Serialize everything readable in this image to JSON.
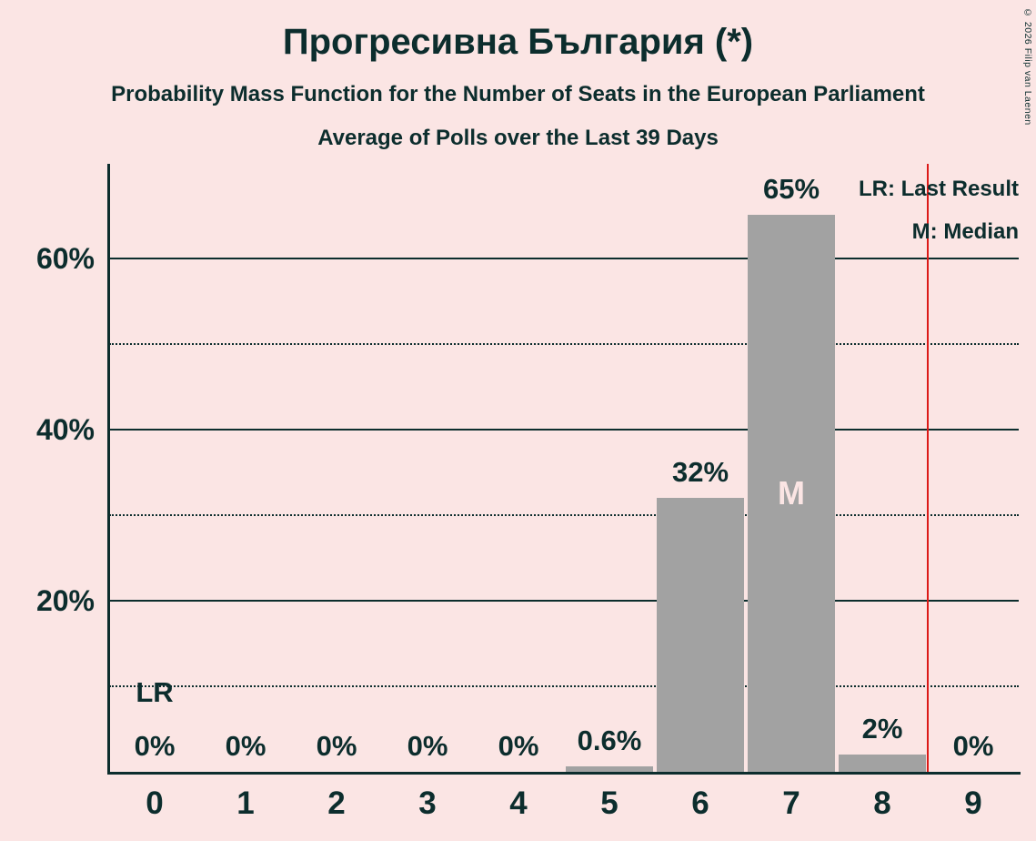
{
  "copyright": "© 2026 Filip van Laenen",
  "legend": {
    "lr": "LR: Last Result",
    "m": "M: Median"
  },
  "chart_data": {
    "type": "bar",
    "title": "Прогресивна България (*)",
    "subtitle": "Probability Mass Function for the Number of Seats in the European Parliament",
    "subsubtitle": "Average of Polls over the Last 39 Days",
    "categories": [
      "0",
      "1",
      "2",
      "3",
      "4",
      "5",
      "6",
      "7",
      "8",
      "9"
    ],
    "values": [
      0,
      0,
      0,
      0,
      0,
      0.6,
      32,
      65,
      2,
      0
    ],
    "value_labels": [
      "0%",
      "0%",
      "0%",
      "0%",
      "0%",
      "0.6%",
      "32%",
      "65%",
      "2%",
      "0%"
    ],
    "xlabel": "",
    "ylabel": "",
    "ylim": [
      0,
      71
    ],
    "yticks": [
      {
        "value": 20,
        "label": "20%"
      },
      {
        "value": 40,
        "label": "40%"
      },
      {
        "value": 60,
        "label": "60%"
      }
    ],
    "gridlines": {
      "solid": [
        20,
        40,
        60
      ],
      "dotted": [
        10,
        30,
        50
      ]
    },
    "median": {
      "category": "7",
      "label": "M"
    },
    "last_result": {
      "category": "0",
      "label": "LR"
    },
    "red_line": {
      "x": 8.5
    },
    "legend_position": "top-right",
    "colors": {
      "background": "#fbe5e4",
      "bar": "#a2a2a2",
      "text": "#0c2d2d",
      "red_line": "#dc1a17",
      "median_text": "#fbe5e4"
    }
  }
}
